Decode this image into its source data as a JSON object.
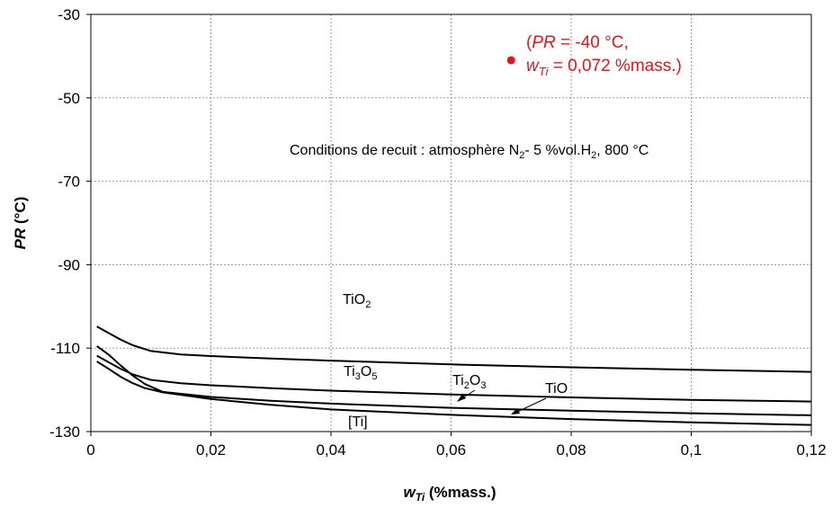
{
  "chart_data": {
    "type": "line",
    "xlabel": {
      "var": "w",
      "sub": "Ti",
      "unit": " (%mass.)"
    },
    "ylabel": {
      "var": "PR",
      "unit": " (°C)"
    },
    "xlim": [
      0,
      0.12
    ],
    "ylim": [
      -130,
      -30
    ],
    "x_ticks": [
      {
        "value": 0,
        "label": "0"
      },
      {
        "value": 0.02,
        "label": "0,02"
      },
      {
        "value": 0.04,
        "label": "0,04"
      },
      {
        "value": 0.06,
        "label": "0,06"
      },
      {
        "value": 0.08,
        "label": "0,08"
      },
      {
        "value": 0.1,
        "label": "0,1"
      },
      {
        "value": 0.12,
        "label": "0,12"
      }
    ],
    "y_ticks": [
      {
        "value": -30,
        "label": "-30"
      },
      {
        "value": -50,
        "label": "-50"
      },
      {
        "value": -70,
        "label": "-70"
      },
      {
        "value": -90,
        "label": "-90"
      },
      {
        "value": -110,
        "label": "-110"
      },
      {
        "value": -130,
        "label": "-130"
      }
    ],
    "grid": true,
    "series": [
      {
        "x": [
          0.001,
          0.003,
          0.005,
          0.007,
          0.01,
          0.015,
          0.02,
          0.03,
          0.04,
          0.06,
          0.08,
          0.1,
          0.12
        ],
        "y": [
          -104.8,
          -106.4,
          -108.0,
          -109.3,
          -110.7,
          -111.5,
          -111.9,
          -112.5,
          -113.0,
          -113.9,
          -114.6,
          -115.2,
          -115.7
        ]
      },
      {
        "x": [
          0.001,
          0.003,
          0.005,
          0.007,
          0.01,
          0.015,
          0.02,
          0.03,
          0.04,
          0.06,
          0.08,
          0.1,
          0.12
        ],
        "y": [
          -111.8,
          -113.4,
          -115.0,
          -116.3,
          -117.6,
          -118.4,
          -118.9,
          -119.6,
          -120.2,
          -121.1,
          -121.8,
          -122.4,
          -122.8
        ]
      },
      {
        "x": [
          0.001,
          0.003,
          0.005,
          0.007,
          0.009,
          0.012,
          0.02,
          0.03,
          0.04,
          0.06,
          0.08,
          0.1,
          0.12
        ],
        "y": [
          -109.5,
          -111.6,
          -114.2,
          -116.6,
          -118.6,
          -120.5,
          -121.7,
          -122.6,
          -123.3,
          -124.3,
          -125.0,
          -125.6,
          -126.1
        ]
      },
      {
        "x": [
          0.001,
          0.003,
          0.005,
          0.007,
          0.009,
          0.012,
          0.02,
          0.03,
          0.04,
          0.06,
          0.08,
          0.1,
          0.12
        ],
        "y": [
          -113.2,
          -115.0,
          -116.9,
          -118.4,
          -119.6,
          -120.6,
          -122.2,
          -123.6,
          -124.7,
          -126.0,
          -127.0,
          -127.8,
          -128.4
        ]
      }
    ],
    "point": {
      "x": 0.07,
      "y": -41,
      "color": "#e8141c"
    },
    "labels": {
      "tio2": {
        "main": "TiO",
        "sub": "2"
      },
      "ti3o5": {
        "main": "Ti",
        "sub1": "3",
        "mid": "O",
        "sub2": "5"
      },
      "ti2o3": {
        "main": "Ti",
        "sub1": "2",
        "mid": "O",
        "sub2": "3"
      },
      "tio": "TiO",
      "ti": "[Ti]"
    },
    "point_label": {
      "line1": {
        "open": "(",
        "var": "PR",
        "rest": " = -40 °C,"
      },
      "line2": {
        "var": "w",
        "sub": "Ti",
        "rest": " = 0,072 %mass.)"
      }
    },
    "conditions": {
      "a": "Conditions de recuit : atmosphère N",
      "sub1": "2",
      "b": "- 5 %vol.H",
      "sub2": "2",
      "c": ", 800 °C"
    },
    "colors": {
      "line": "#000000",
      "grid": "#9a9a9a",
      "highlight": "#e8141c"
    }
  }
}
